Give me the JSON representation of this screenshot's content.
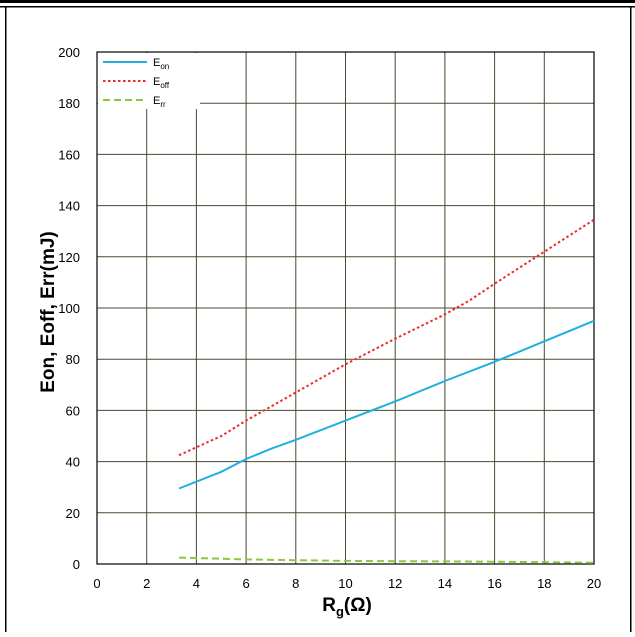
{
  "chart_data": {
    "type": "line",
    "title": "",
    "xlabel_main": "R",
    "xlabel_sub": "g",
    "xlabel_unit": "(Ω)",
    "ylabel": "Eon, Eoff, Err(mJ)",
    "xlim": [
      0,
      20
    ],
    "ylim": [
      0,
      200
    ],
    "x_ticks": [
      0,
      2,
      4,
      6,
      8,
      10,
      12,
      14,
      16,
      18,
      20
    ],
    "y_ticks": [
      0,
      20,
      40,
      60,
      80,
      100,
      120,
      140,
      160,
      180,
      200
    ],
    "grid": true,
    "legend_position": "top-left",
    "series": [
      {
        "name": "E",
        "sub": "on",
        "color": "#1fb0e0",
        "dash": "solid",
        "x": [
          3.3,
          5,
          6,
          7,
          8,
          10,
          12,
          14,
          16,
          18,
          20
        ],
        "y": [
          29.5,
          36,
          41,
          45,
          48.5,
          56,
          63.5,
          71.5,
          79,
          87,
          95
        ]
      },
      {
        "name": "E",
        "sub": "off",
        "color": "#ee2a2a",
        "dash": "dotted",
        "x": [
          3.3,
          5,
          6,
          8,
          10,
          12,
          14,
          15,
          16,
          18,
          20
        ],
        "y": [
          42.5,
          50,
          56,
          67,
          78,
          88,
          97.5,
          103,
          109.5,
          122,
          134.5
        ]
      },
      {
        "name": "E",
        "sub": "rr",
        "color": "#8dc63f",
        "dash": "dashed",
        "x": [
          3.3,
          6,
          8,
          10,
          12,
          14,
          16,
          18,
          20
        ],
        "y": [
          2.5,
          1.8,
          1.5,
          1.2,
          1.1,
          1.0,
          0.9,
          0.7,
          0.5
        ]
      }
    ]
  }
}
